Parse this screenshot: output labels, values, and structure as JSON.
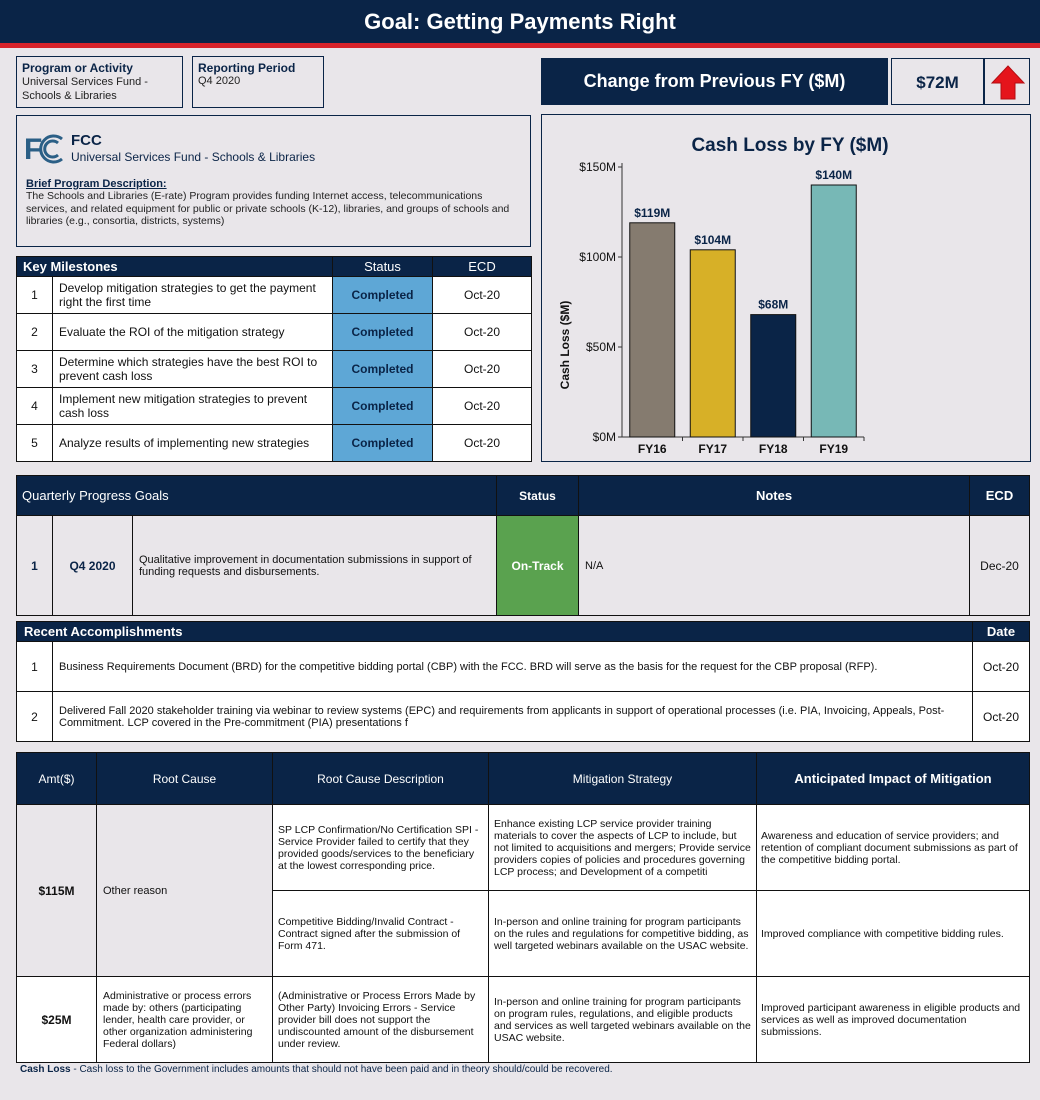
{
  "title": "Goal: Getting Payments Right",
  "program": {
    "label": "Program or Activity",
    "value": "Universal Services Fund - Schools & Libraries"
  },
  "period": {
    "label": "Reporting Period",
    "value": "Q4 2020"
  },
  "change": {
    "label": "Change from Previous FY ($M)",
    "value": "$72M",
    "direction_icon": "arrow-up-icon",
    "arrow_color": "#e5141b"
  },
  "agency": {
    "logo_text": "FCC",
    "name": "FCC",
    "program_name": "Universal Services Fund - Schools & Libraries",
    "desc_label": "Brief Program Description:",
    "description": "The Schools and Libraries (E-rate) Program provides funding Internet access, telecommunications services, and related equipment for public or private schools (K-12), libraries, and groups of schools and libraries (e.g., consortia, districts, systems)"
  },
  "milestones": {
    "header": "Key Milestones",
    "status_header": "Status",
    "ecd_header": "ECD",
    "rows": [
      {
        "num": "1",
        "text": "Develop mitigation strategies to get the payment right the first time",
        "status": "Completed",
        "ecd": "Oct-20"
      },
      {
        "num": "2",
        "text": "Evaluate the ROI of the mitigation strategy",
        "status": "Completed",
        "ecd": "Oct-20"
      },
      {
        "num": "3",
        "text": "Determine which strategies have the best ROI to prevent cash loss",
        "status": "Completed",
        "ecd": "Oct-20"
      },
      {
        "num": "4",
        "text": "Implement new mitigation strategies to prevent cash loss",
        "status": "Completed",
        "ecd": "Oct-20"
      },
      {
        "num": "5",
        "text": "Analyze results of implementing new strategies",
        "status": "Completed",
        "ecd": "Oct-20"
      }
    ]
  },
  "chart_data": {
    "type": "bar",
    "title": "Cash Loss by FY ($M)",
    "categories": [
      "FY16",
      "FY17",
      "FY18",
      "FY19"
    ],
    "values": [
      119,
      104,
      68,
      140
    ],
    "data_labels": [
      "$119M",
      "$104M",
      "$68M",
      "$140M"
    ],
    "bar_colors": [
      "#857b6f",
      "#d7b027",
      "#0a2447",
      "#77b8b6"
    ],
    "ylabel": "Cash Loss ($M)",
    "yticks": [
      "$0M",
      "$50M",
      "$100M",
      "$150M"
    ],
    "ylim": [
      0,
      150
    ],
    "grid": false
  },
  "quarterly": {
    "header": "Quarterly Progress Goals",
    "status_header": "Status",
    "notes_header": "Notes",
    "ecd_header": "ECD",
    "row": {
      "num": "1",
      "quarter": "Q4 2020",
      "text": "Qualitative improvement in documentation submissions in support of funding requests and disbursements.",
      "status": "On-Track",
      "notes": "N/A",
      "ecd": "Dec-20"
    }
  },
  "accomplishments": {
    "header": "Recent  Accomplishments",
    "date_header": "Date",
    "rows": [
      {
        "num": "1",
        "text": "Business Requirements Document (BRD) for the competitive bidding portal (CBP) with the FCC.  BRD will serve as the basis for the request for the CBP proposal (RFP).",
        "date": "Oct-20"
      },
      {
        "num": "2",
        "text": "Delivered Fall 2020 stakeholder training via webinar to review systems (EPC) and requirements from applicants in support of operational processes (i.e. PIA, Invoicing, Appeals, Post-Commitment.  LCP covered in the Pre-commitment (PIA) presentations f",
        "date": "Oct-20"
      }
    ]
  },
  "rootcause": {
    "headers": [
      "Amt($)",
      "Root Cause",
      "Root Cause Description",
      "Mitigation Strategy",
      "Anticipated Impact of Mitigation"
    ],
    "group1": {
      "amt": "$115M",
      "cause": "Other reason",
      "rows": [
        {
          "desc": "SP LCP Confirmation/No Certification SPI - Service Provider failed to certify that they provided goods/services to the beneficiary at the lowest corresponding price.",
          "strategy": "Enhance existing LCP service provider training materials to cover the aspects of LCP to include, but not limited to acquisitions and mergers; Provide service providers copies of policies and procedures governing LCP process; and Development of a competiti",
          "impact": "Awareness and education of service providers; and retention of compliant document submissions as part of the competitive bidding portal."
        },
        {
          "desc": "Competitive Bidding/Invalid Contract - Contract signed after the submission of Form 471.",
          "strategy": "In-person and online training for program participants on the rules and regulations for competitive bidding, as well targeted webinars available on the USAC website.",
          "impact": "Improved compliance with competitive bidding rules."
        }
      ]
    },
    "group2": {
      "amt": "$25M",
      "cause": "Administrative or process errors made by: others (participating lender, health care provider, or other organization administering Federal dollars)",
      "desc": "(Administrative or Process Errors Made by Other Party) Invoicing Errors - Service provider bill does not support the undiscounted amount of the disbursement under review.",
      "strategy": "In-person and online training for program participants on program rules, regulations, and eligible products and services as well targeted webinars available on the USAC website.",
      "impact": "Improved participant awareness in eligible products and services as well as improved documentation submissions."
    }
  },
  "footnote": {
    "term": "Cash Loss",
    "text": " - Cash loss to the Government includes amounts that should not have been paid and in theory should/could be recovered."
  }
}
